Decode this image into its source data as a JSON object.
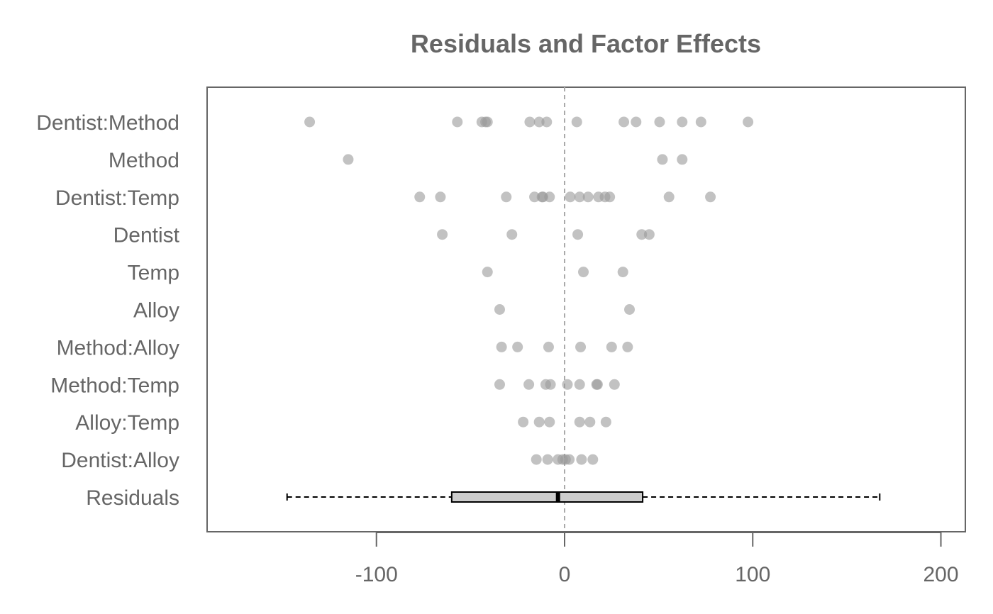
{
  "chart_data": {
    "type": "scatter",
    "title": "Residuals and Factor Effects",
    "xlabel": "",
    "ylabel": "",
    "xlim": [
      -190,
      213
    ],
    "xticks": [
      -100,
      0,
      100,
      200
    ],
    "tick_labels": [
      "-100",
      "0",
      "100",
      "200"
    ],
    "reference_line_x": 0,
    "point_color": "#999999",
    "categories": [
      "Dentist:Method",
      "Method",
      "Dentist:Temp",
      "Dentist",
      "Temp",
      "Alloy",
      "Method:Alloy",
      "Method:Temp",
      "Alloy:Temp",
      "Dentist:Alloy",
      "Residuals"
    ],
    "effects": [
      {
        "name": "Dentist:Method",
        "values": [
          -135.5,
          -57,
          -44,
          -42,
          -41,
          -18.5,
          -13.5,
          -9.5,
          6.5,
          31.5,
          38,
          50.5,
          62.5,
          72.5,
          97.5
        ]
      },
      {
        "name": "Method",
        "values": [
          -115,
          52,
          62.5
        ]
      },
      {
        "name": "Dentist:Temp",
        "values": [
          -77,
          -66,
          -31,
          -16,
          -12,
          -11.5,
          -8,
          3,
          8,
          12.5,
          18,
          21.5,
          24,
          55.5,
          77.5
        ]
      },
      {
        "name": "Dentist",
        "values": [
          -65,
          -28,
          7,
          41,
          45
        ]
      },
      {
        "name": "Temp",
        "values": [
          -41,
          10,
          31
        ]
      },
      {
        "name": "Alloy",
        "values": [
          -34.5,
          34.5
        ]
      },
      {
        "name": "Method:Alloy",
        "values": [
          -33.5,
          -25,
          -8.5,
          8.5,
          25,
          33.5
        ]
      },
      {
        "name": "Method:Temp",
        "values": [
          -34.5,
          -19,
          -10,
          -7.5,
          1.5,
          8,
          17,
          17.5,
          26.5
        ]
      },
      {
        "name": "Alloy:Temp",
        "values": [
          -22,
          -13.5,
          -8,
          8,
          13.5,
          22
        ]
      },
      {
        "name": "Dentist:Alloy",
        "values": [
          -15,
          -9,
          -3.5,
          -1,
          0.5,
          2.5,
          9,
          15
        ]
      },
      {
        "name": "Residuals",
        "box": {
          "whisker_low": -147.5,
          "q1": -60,
          "median": -3.5,
          "q3": 41.5,
          "whisker_high": 167.5
        }
      }
    ]
  }
}
